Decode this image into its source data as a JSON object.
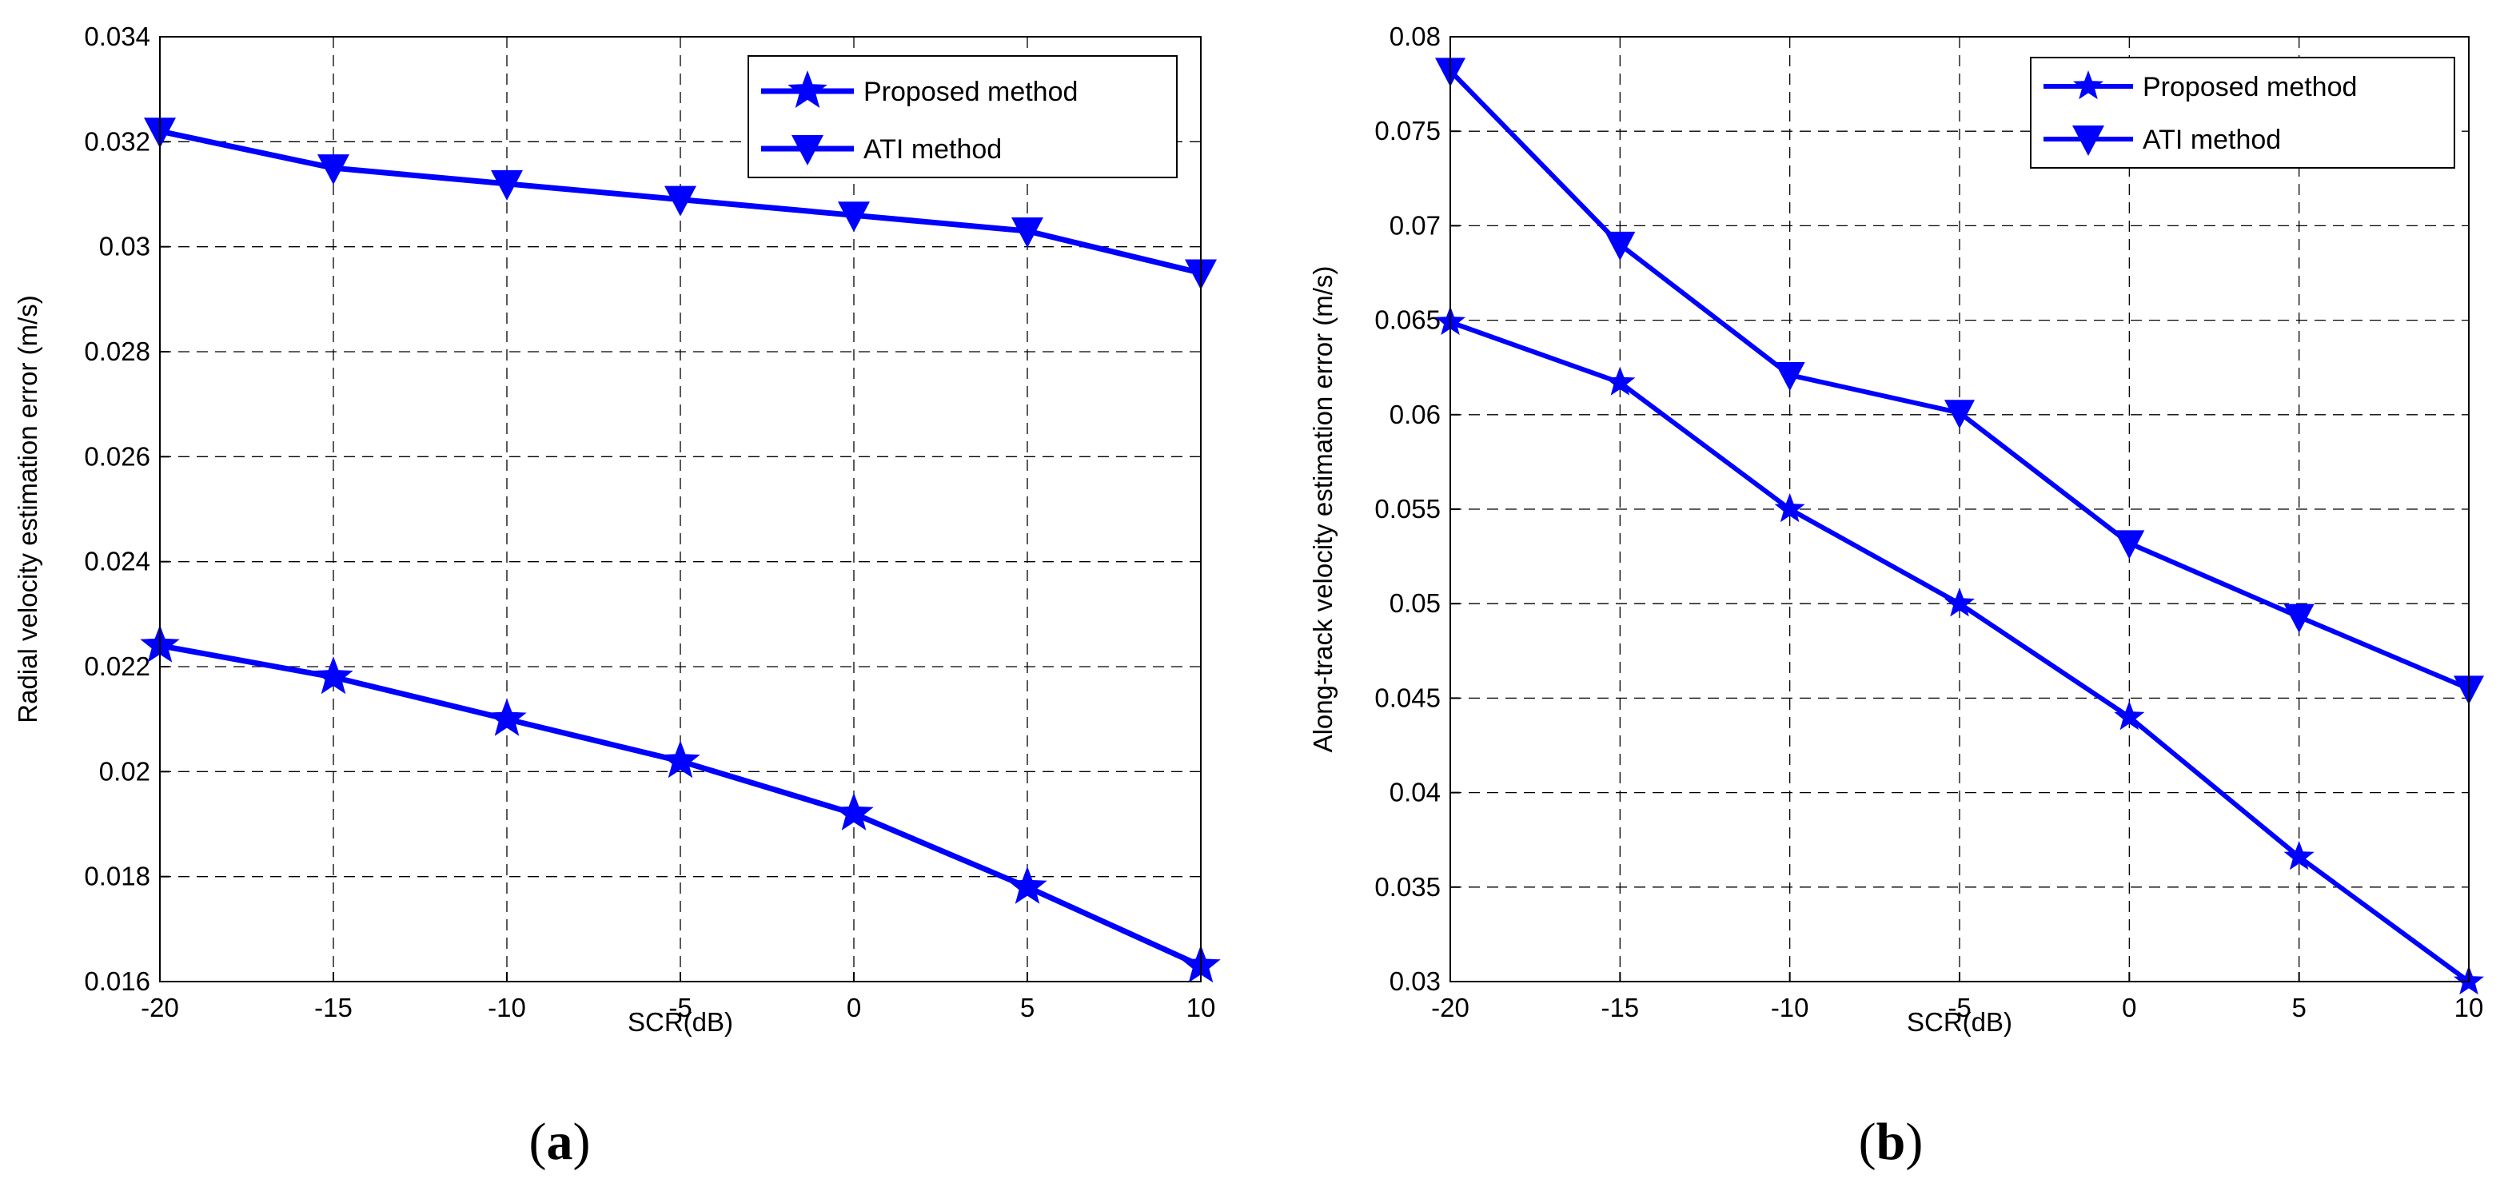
{
  "chart_data": [
    {
      "type": "line",
      "panel_label": "a",
      "title": "",
      "xlabel": "SCR(dB)",
      "ylabel": "Radial velocity estimation error (m/s)",
      "x": [
        -20,
        -15,
        -10,
        -5,
        0,
        5,
        10
      ],
      "xlim": [
        -20,
        10
      ],
      "ylim": [
        0.016,
        0.034
      ],
      "xticks": [
        -20,
        -15,
        -10,
        -5,
        0,
        5,
        10
      ],
      "xtick_labels": [
        "-20",
        "-15",
        "-10",
        "-5",
        "0",
        "5",
        "10"
      ],
      "yticks": [
        0.016,
        0.018,
        0.02,
        0.022,
        0.024,
        0.026,
        0.028,
        0.03,
        0.032,
        0.034
      ],
      "ytick_labels": [
        "0.016",
        "0.018",
        "0.02",
        "0.022",
        "0.024",
        "0.026",
        "0.028",
        "0.03",
        "0.032",
        "0.034"
      ],
      "grid": true,
      "legend_position": "top-right",
      "series": [
        {
          "name": "Proposed method",
          "marker": "star",
          "color": "#0000ff",
          "values": [
            0.0224,
            0.0218,
            0.021,
            0.0202,
            0.0192,
            0.0178,
            0.0163
          ]
        },
        {
          "name": "ATI method",
          "marker": "triangle-down",
          "color": "#0000ff",
          "values": [
            0.0322,
            0.0315,
            0.0312,
            0.0309,
            0.0306,
            0.0303,
            0.0295
          ]
        }
      ]
    },
    {
      "type": "line",
      "panel_label": "b",
      "title": "",
      "xlabel": "SCR(dB)",
      "ylabel": "Along-track velocity estimation error (m/s)",
      "x": [
        -20,
        -15,
        -10,
        -5,
        0,
        5,
        10
      ],
      "xlim": [
        -20,
        10
      ],
      "ylim": [
        0.03,
        0.08
      ],
      "xticks": [
        -20,
        -15,
        -10,
        -5,
        0,
        5,
        10
      ],
      "xtick_labels": [
        "-20",
        "-15",
        "-10",
        "-5",
        "0",
        "5",
        "10"
      ],
      "yticks": [
        0.03,
        0.035,
        0.04,
        0.045,
        0.05,
        0.055,
        0.06,
        0.065,
        0.07,
        0.075,
        0.08
      ],
      "ytick_labels": [
        "0.03",
        "0.035",
        "0.04",
        "0.045",
        "0.05",
        "0.055",
        "0.06",
        "0.065",
        "0.07",
        "0.075",
        "0.08"
      ],
      "grid": true,
      "legend_position": "top-right",
      "series": [
        {
          "name": "Proposed method",
          "marker": "star",
          "color": "#0000ff",
          "values": [
            0.0649,
            0.0617,
            0.055,
            0.05,
            0.044,
            0.0366,
            0.03
          ]
        },
        {
          "name": "ATI method",
          "marker": "triangle-down",
          "color": "#0000ff",
          "values": [
            0.0782,
            0.069,
            0.0621,
            0.0601,
            0.0532,
            0.0493,
            0.0455
          ]
        }
      ]
    }
  ]
}
